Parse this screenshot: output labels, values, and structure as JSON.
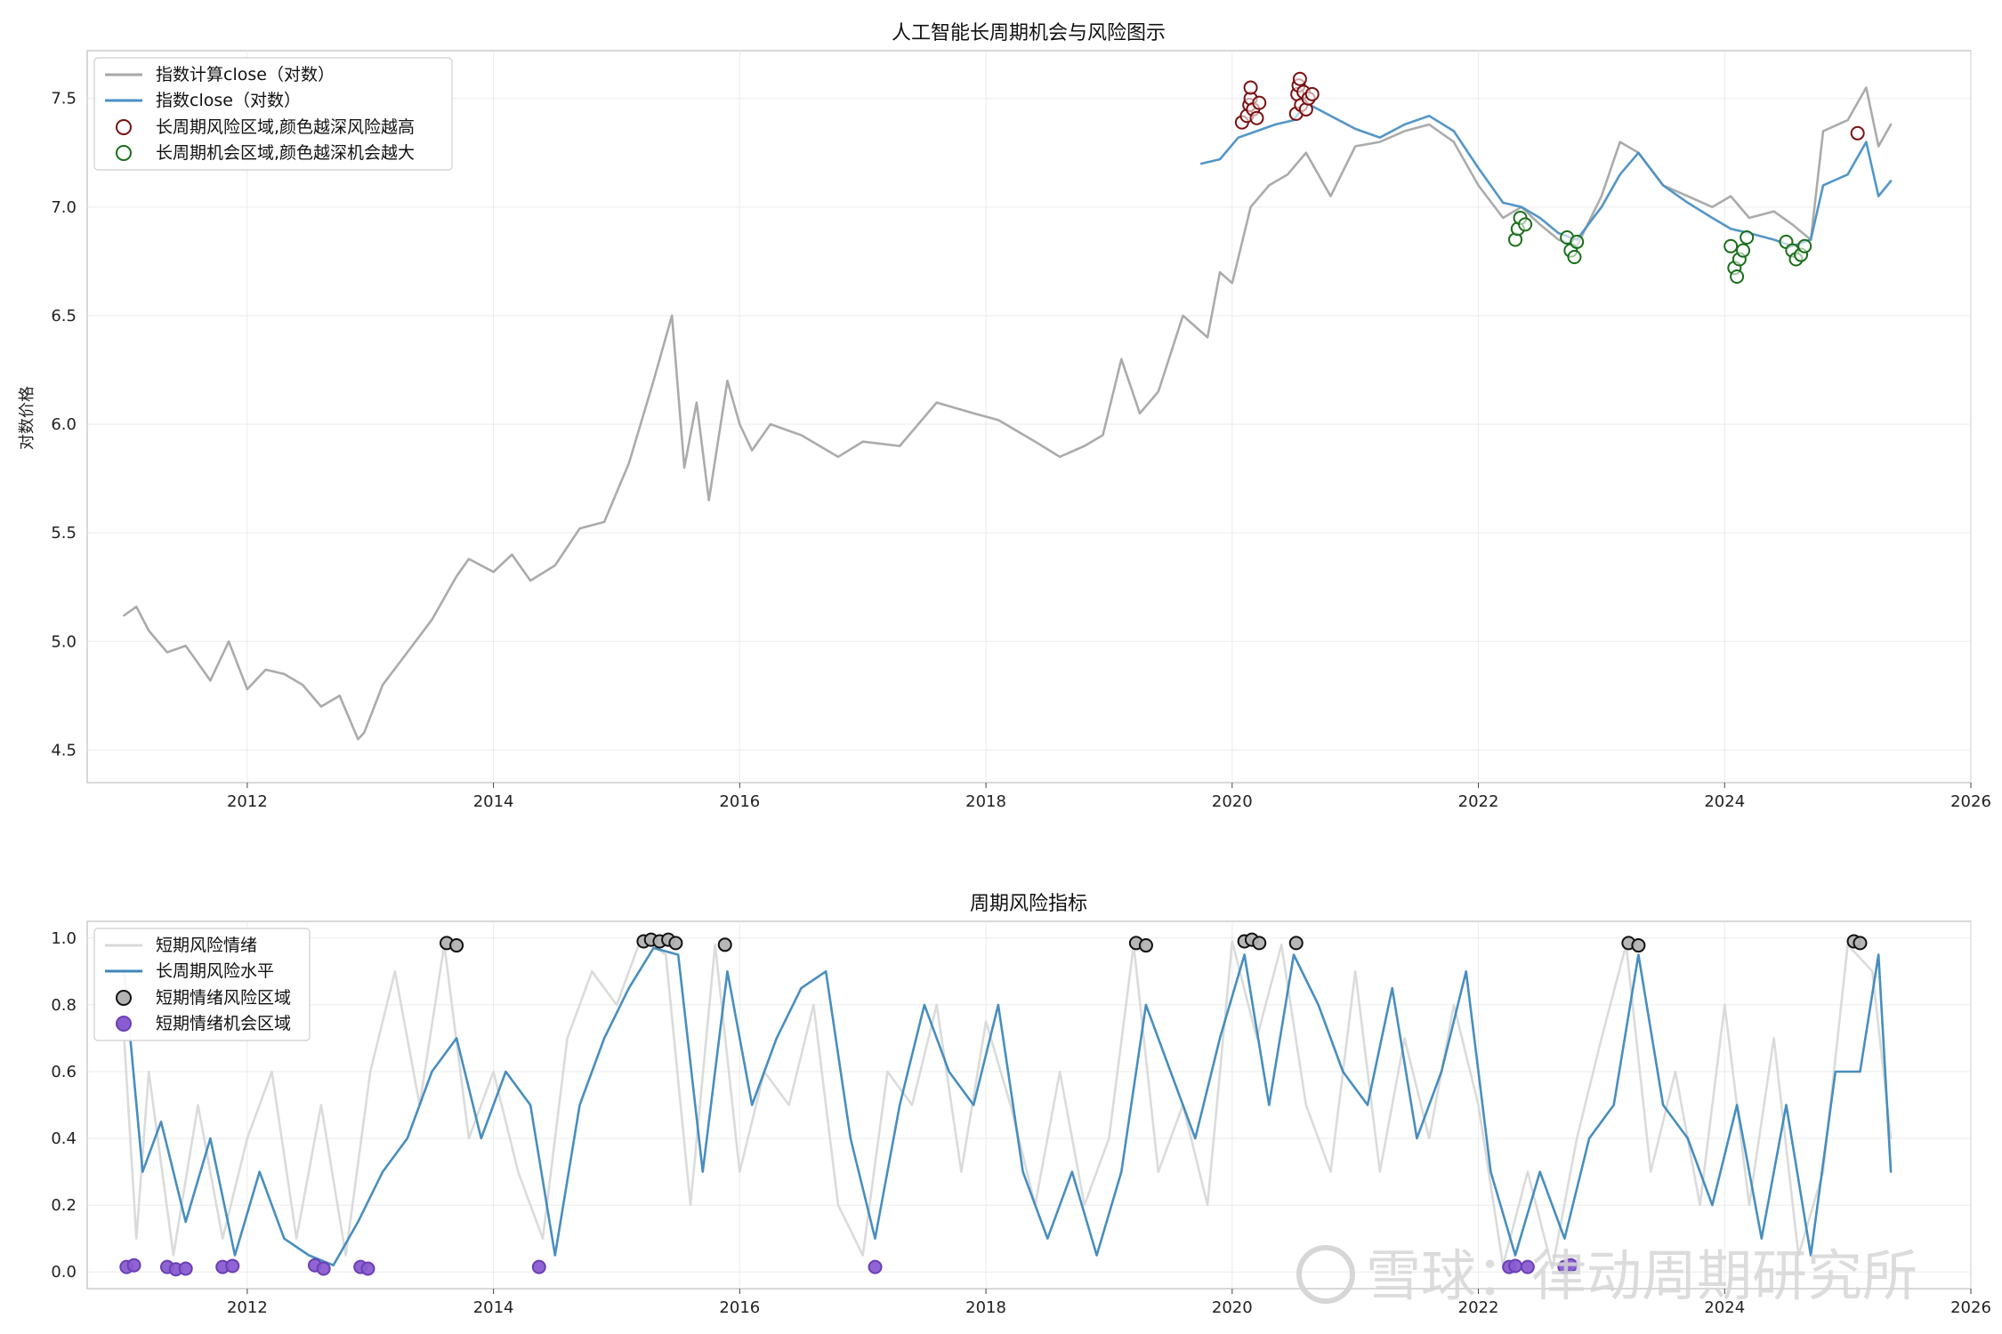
{
  "watermark": {
    "text": "雪球：律动周期研究所"
  },
  "chart_data": [
    {
      "type": "line",
      "title": "人工智能长周期机会与风险图示",
      "ylabel": "对数价格",
      "xlim": [
        2010.7,
        2026.0
      ],
      "ylim": [
        4.35,
        7.72
      ],
      "yticks": [
        "4.5",
        "5.0",
        "5.5",
        "6.0",
        "6.5",
        "7.0",
        "7.5"
      ],
      "xticks": [
        "2012",
        "2014",
        "2016",
        "2018",
        "2020",
        "2022",
        "2024",
        "2026"
      ],
      "grid": true,
      "legend_position": "top-left",
      "series": [
        {
          "name": "指数计算close（对数）",
          "color": "#a6a6a6",
          "x": [
            2011.0,
            2011.1,
            2011.2,
            2011.35,
            2011.5,
            2011.7,
            2011.85,
            2012.0,
            2012.15,
            2012.3,
            2012.45,
            2012.6,
            2012.75,
            2012.9,
            2012.95,
            2013.1,
            2013.3,
            2013.5,
            2013.7,
            2013.8,
            2014.0,
            2014.15,
            2014.3,
            2014.5,
            2014.7,
            2014.9,
            2015.1,
            2015.3,
            2015.45,
            2015.55,
            2015.65,
            2015.75,
            2015.9,
            2016.0,
            2016.1,
            2016.25,
            2016.5,
            2016.8,
            2017.0,
            2017.3,
            2017.6,
            2017.9,
            2018.1,
            2018.4,
            2018.6,
            2018.8,
            2018.95,
            2019.1,
            2019.25,
            2019.4,
            2019.6,
            2019.8,
            2019.9,
            2020.0,
            2020.15,
            2020.3,
            2020.45,
            2020.6,
            2020.8,
            2021.0,
            2021.2,
            2021.4,
            2021.6,
            2021.8,
            2022.0,
            2022.2,
            2022.35,
            2022.5,
            2022.65,
            2022.8,
            2023.0,
            2023.15,
            2023.3,
            2023.5,
            2023.7,
            2023.9,
            2024.05,
            2024.2,
            2024.4,
            2024.55,
            2024.7,
            2024.8,
            2025.0,
            2025.15,
            2025.25,
            2025.35
          ],
          "values": [
            5.12,
            5.16,
            5.05,
            4.95,
            4.98,
            4.82,
            5.0,
            4.78,
            4.87,
            4.85,
            4.8,
            4.7,
            4.75,
            4.55,
            4.58,
            4.8,
            4.95,
            5.1,
            5.3,
            5.38,
            5.32,
            5.4,
            5.28,
            5.35,
            5.52,
            5.55,
            5.82,
            6.2,
            6.5,
            5.8,
            6.1,
            5.65,
            6.2,
            6.0,
            5.88,
            6.0,
            5.95,
            5.85,
            5.92,
            5.9,
            6.1,
            6.05,
            6.02,
            5.92,
            5.85,
            5.9,
            5.95,
            6.3,
            6.05,
            6.15,
            6.5,
            6.4,
            6.7,
            6.65,
            7.0,
            7.1,
            7.15,
            7.25,
            7.05,
            7.28,
            7.3,
            7.35,
            7.38,
            7.3,
            7.1,
            6.95,
            7.0,
            6.92,
            6.85,
            6.82,
            7.05,
            7.3,
            7.25,
            7.1,
            7.05,
            7.0,
            7.05,
            6.95,
            6.98,
            6.92,
            6.85,
            7.35,
            7.4,
            7.55,
            7.28,
            7.38
          ]
        },
        {
          "name": "指数close（对数）",
          "color": "#4a90c4",
          "x": [
            2019.75,
            2019.9,
            2020.05,
            2020.2,
            2020.35,
            2020.5,
            2020.6,
            2020.8,
            2021.0,
            2021.2,
            2021.4,
            2021.6,
            2021.8,
            2022.0,
            2022.2,
            2022.35,
            2022.5,
            2022.65,
            2022.8,
            2023.0,
            2023.15,
            2023.3,
            2023.5,
            2023.7,
            2023.9,
            2024.05,
            2024.2,
            2024.4,
            2024.55,
            2024.7,
            2024.8,
            2025.0,
            2025.15,
            2025.25,
            2025.35
          ],
          "values": [
            7.2,
            7.22,
            7.32,
            7.35,
            7.38,
            7.4,
            7.48,
            7.42,
            7.36,
            7.32,
            7.38,
            7.42,
            7.35,
            7.18,
            7.02,
            7.0,
            6.95,
            6.88,
            6.85,
            7.0,
            7.15,
            7.25,
            7.1,
            7.02,
            6.95,
            6.9,
            6.88,
            6.85,
            6.82,
            6.85,
            7.1,
            7.15,
            7.3,
            7.05,
            7.12
          ]
        }
      ],
      "markers": [
        {
          "name": "长周期风险区域,颜色越深风险越高",
          "edge": "#7a1010",
          "points": [
            [
              2020.08,
              7.39
            ],
            [
              2020.12,
              7.42
            ],
            [
              2020.14,
              7.47
            ],
            [
              2020.15,
              7.5
            ],
            [
              2020.15,
              7.55
            ],
            [
              2020.17,
              7.45
            ],
            [
              2020.2,
              7.41
            ],
            [
              2020.22,
              7.48
            ],
            [
              2020.52,
              7.43
            ],
            [
              2020.53,
              7.52
            ],
            [
              2020.54,
              7.56
            ],
            [
              2020.55,
              7.59
            ],
            [
              2020.56,
              7.47
            ],
            [
              2020.58,
              7.53
            ],
            [
              2020.6,
              7.45
            ],
            [
              2020.62,
              7.5
            ],
            [
              2020.65,
              7.52
            ],
            [
              2025.08,
              7.34
            ]
          ]
        },
        {
          "name": "长周期机会区域,颜色越深机会越大",
          "edge": "#1a6e1a",
          "points": [
            [
              2022.3,
              6.85
            ],
            [
              2022.32,
              6.9
            ],
            [
              2022.34,
              6.95
            ],
            [
              2022.38,
              6.92
            ],
            [
              2022.72,
              6.86
            ],
            [
              2022.75,
              6.8
            ],
            [
              2022.78,
              6.77
            ],
            [
              2022.8,
              6.84
            ],
            [
              2024.05,
              6.82
            ],
            [
              2024.08,
              6.72
            ],
            [
              2024.1,
              6.68
            ],
            [
              2024.12,
              6.76
            ],
            [
              2024.15,
              6.8
            ],
            [
              2024.18,
              6.86
            ],
            [
              2024.5,
              6.84
            ],
            [
              2024.55,
              6.8
            ],
            [
              2024.58,
              6.76
            ],
            [
              2024.62,
              6.78
            ],
            [
              2024.65,
              6.82
            ]
          ]
        }
      ]
    },
    {
      "type": "line",
      "title": "周期风险指标",
      "ylabel": "",
      "xlim": [
        2010.7,
        2026.0
      ],
      "ylim": [
        -0.05,
        1.05
      ],
      "yticks": [
        "0.0",
        "0.2",
        "0.4",
        "0.6",
        "0.8",
        "1.0"
      ],
      "xticks": [
        "2012",
        "2014",
        "2016",
        "2018",
        "2020",
        "2022",
        "2024",
        "2026"
      ],
      "grid": true,
      "legend_position": "top-left",
      "series": [
        {
          "name": "短期风险情绪",
          "color": "#d9d9d9",
          "x": [
            2011.0,
            2011.1,
            2011.2,
            2011.4,
            2011.6,
            2011.8,
            2012.0,
            2012.2,
            2012.4,
            2012.6,
            2012.8,
            2013.0,
            2013.2,
            2013.4,
            2013.6,
            2013.8,
            2014.0,
            2014.2,
            2014.4,
            2014.6,
            2014.8,
            2015.0,
            2015.2,
            2015.4,
            2015.6,
            2015.8,
            2016.0,
            2016.2,
            2016.4,
            2016.6,
            2016.8,
            2017.0,
            2017.2,
            2017.4,
            2017.6,
            2017.8,
            2018.0,
            2018.2,
            2018.4,
            2018.6,
            2018.8,
            2019.0,
            2019.2,
            2019.4,
            2019.6,
            2019.8,
            2020.0,
            2020.2,
            2020.4,
            2020.6,
            2020.8,
            2021.0,
            2021.2,
            2021.4,
            2021.6,
            2021.8,
            2022.0,
            2022.2,
            2022.4,
            2022.6,
            2022.8,
            2023.0,
            2023.2,
            2023.4,
            2023.6,
            2023.8,
            2024.0,
            2024.2,
            2024.4,
            2024.6,
            2024.8,
            2025.0,
            2025.2,
            2025.35
          ],
          "values": [
            0.7,
            0.1,
            0.6,
            0.05,
            0.5,
            0.1,
            0.4,
            0.6,
            0.1,
            0.5,
            0.05,
            0.6,
            0.9,
            0.5,
            0.98,
            0.4,
            0.6,
            0.3,
            0.1,
            0.7,
            0.9,
            0.8,
            1.0,
            0.95,
            0.2,
            0.98,
            0.3,
            0.6,
            0.5,
            0.8,
            0.2,
            0.05,
            0.6,
            0.5,
            0.8,
            0.3,
            0.75,
            0.5,
            0.2,
            0.6,
            0.2,
            0.4,
            0.98,
            0.3,
            0.5,
            0.2,
            0.99,
            0.7,
            0.98,
            0.5,
            0.3,
            0.9,
            0.3,
            0.7,
            0.4,
            0.8,
            0.5,
            0.02,
            0.3,
            0.01,
            0.4,
            0.7,
            0.98,
            0.3,
            0.6,
            0.2,
            0.8,
            0.2,
            0.7,
            0.05,
            0.3,
            0.98,
            0.9,
            0.4
          ]
        },
        {
          "name": "长周期风险水平",
          "color": "#3e88ba",
          "x": [
            2011.0,
            2011.15,
            2011.3,
            2011.5,
            2011.7,
            2011.9,
            2012.1,
            2012.3,
            2012.5,
            2012.7,
            2012.9,
            2013.1,
            2013.3,
            2013.5,
            2013.7,
            2013.9,
            2014.1,
            2014.3,
            2014.5,
            2014.7,
            2014.9,
            2015.1,
            2015.3,
            2015.5,
            2015.7,
            2015.9,
            2016.1,
            2016.3,
            2016.5,
            2016.7,
            2016.9,
            2017.1,
            2017.3,
            2017.5,
            2017.7,
            2017.9,
            2018.1,
            2018.3,
            2018.5,
            2018.7,
            2018.9,
            2019.1,
            2019.3,
            2019.5,
            2019.7,
            2019.9,
            2020.1,
            2020.3,
            2020.5,
            2020.7,
            2020.9,
            2021.1,
            2021.3,
            2021.5,
            2021.7,
            2021.9,
            2022.1,
            2022.3,
            2022.5,
            2022.7,
            2022.9,
            2023.1,
            2023.3,
            2023.5,
            2023.7,
            2023.9,
            2024.1,
            2024.3,
            2024.5,
            2024.7,
            2024.9,
            2025.1,
            2025.25,
            2025.35
          ],
          "values": [
            0.9,
            0.3,
            0.45,
            0.15,
            0.4,
            0.05,
            0.3,
            0.1,
            0.05,
            0.02,
            0.15,
            0.3,
            0.4,
            0.6,
            0.7,
            0.4,
            0.6,
            0.5,
            0.05,
            0.5,
            0.7,
            0.85,
            0.97,
            0.95,
            0.3,
            0.9,
            0.5,
            0.7,
            0.85,
            0.9,
            0.4,
            0.1,
            0.5,
            0.8,
            0.6,
            0.5,
            0.8,
            0.3,
            0.1,
            0.3,
            0.05,
            0.3,
            0.8,
            0.6,
            0.4,
            0.7,
            0.95,
            0.5,
            0.95,
            0.8,
            0.6,
            0.5,
            0.85,
            0.4,
            0.6,
            0.9,
            0.3,
            0.05,
            0.3,
            0.1,
            0.4,
            0.5,
            0.95,
            0.5,
            0.4,
            0.2,
            0.5,
            0.1,
            0.5,
            0.05,
            0.6,
            0.6,
            0.95,
            0.3
          ]
        }
      ],
      "markers": [
        {
          "name": "短期情绪风险区域",
          "fill": "#b3b3b3",
          "edge": "#111111",
          "points": [
            [
              2013.62,
              0.985
            ],
            [
              2013.7,
              0.978
            ],
            [
              2015.22,
              0.99
            ],
            [
              2015.28,
              0.995
            ],
            [
              2015.35,
              0.99
            ],
            [
              2015.42,
              0.995
            ],
            [
              2015.48,
              0.985
            ],
            [
              2015.88,
              0.98
            ],
            [
              2019.22,
              0.985
            ],
            [
              2019.3,
              0.978
            ],
            [
              2020.1,
              0.99
            ],
            [
              2020.16,
              0.995
            ],
            [
              2020.22,
              0.985
            ],
            [
              2020.52,
              0.985
            ],
            [
              2023.22,
              0.985
            ],
            [
              2023.3,
              0.978
            ],
            [
              2025.05,
              0.99
            ],
            [
              2025.1,
              0.985
            ]
          ]
        },
        {
          "name": "短期情绪机会区域",
          "fill": "#8a5cd0",
          "edge": "#6a3fb5",
          "points": [
            [
              2011.02,
              0.015
            ],
            [
              2011.08,
              0.02
            ],
            [
              2011.35,
              0.015
            ],
            [
              2011.42,
              0.008
            ],
            [
              2011.5,
              0.01
            ],
            [
              2011.8,
              0.015
            ],
            [
              2011.88,
              0.018
            ],
            [
              2012.55,
              0.02
            ],
            [
              2012.62,
              0.01
            ],
            [
              2012.92,
              0.015
            ],
            [
              2012.98,
              0.01
            ],
            [
              2014.37,
              0.015
            ],
            [
              2017.1,
              0.015
            ],
            [
              2022.25,
              0.015
            ],
            [
              2022.3,
              0.018
            ],
            [
              2022.4,
              0.015
            ],
            [
              2022.7,
              0.015
            ],
            [
              2022.75,
              0.02
            ]
          ]
        }
      ]
    }
  ]
}
